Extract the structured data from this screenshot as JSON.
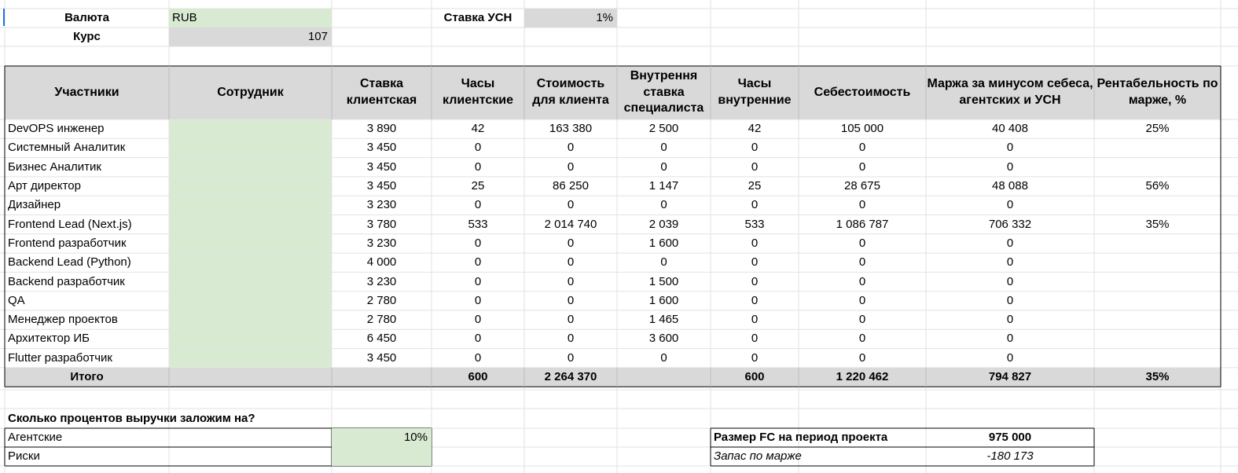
{
  "top": {
    "currency_label": "Валюта",
    "currency_value": "RUB",
    "rate_label": "Курс",
    "rate_value": "107",
    "usn_label": "Ставка УСН",
    "usn_value": "1%"
  },
  "table": {
    "headers": [
      "Участники",
      "Сотрудник",
      "Ставка клиентская",
      "Часы клиентские",
      "Стоимость для клиента",
      "Внутрення ставка специалиста",
      "Часы внутренние",
      "Себестоимость",
      "Маржа за минусом себеса, агентских и УСН",
      "Рентабельность по марже, %"
    ],
    "rows": [
      [
        "DevOPS инженер",
        "",
        "3 890",
        "42",
        "163 380",
        "2 500",
        "42",
        "105 000",
        "40 408",
        "25%"
      ],
      [
        "Системный Аналитик",
        "",
        "3 450",
        "0",
        "0",
        "0",
        "0",
        "0",
        "0",
        ""
      ],
      [
        "Бизнес Аналитик",
        "",
        "3 450",
        "0",
        "0",
        "0",
        "0",
        "0",
        "0",
        ""
      ],
      [
        "Арт директор",
        "",
        "3 450",
        "25",
        "86 250",
        "1 147",
        "25",
        "28 675",
        "48 088",
        "56%"
      ],
      [
        "Дизайнер",
        "",
        "3 230",
        "0",
        "0",
        "0",
        "0",
        "0",
        "0",
        ""
      ],
      [
        "Frontend Lead  (Next.js)",
        "",
        "3 780",
        "533",
        "2 014 740",
        "2 039",
        "533",
        "1 086 787",
        "706 332",
        "35%"
      ],
      [
        "Frontend разработчик",
        "",
        "3 230",
        "0",
        "0",
        "1 600",
        "0",
        "0",
        "0",
        ""
      ],
      [
        "Backend Lead (Python)",
        "",
        "4 000",
        "0",
        "0",
        "0",
        "0",
        "0",
        "0",
        ""
      ],
      [
        "Backend разработчик",
        "",
        "3 230",
        "0",
        "0",
        "1 500",
        "0",
        "0",
        "0",
        ""
      ],
      [
        "QA",
        "",
        "2 780",
        "0",
        "0",
        "1 600",
        "0",
        "0",
        "0",
        ""
      ],
      [
        "Менеджер проектов",
        "",
        "2 780",
        "0",
        "0",
        "1 465",
        "0",
        "0",
        "0",
        ""
      ],
      [
        "Архитектор ИБ",
        "",
        "6 450",
        "0",
        "0",
        "3 600",
        "0",
        "0",
        "0",
        ""
      ],
      [
        "Flutter разработчик",
        "",
        "3 450",
        "0",
        "0",
        "0",
        "0",
        "0",
        "0",
        ""
      ]
    ],
    "total": [
      "Итого",
      "",
      "",
      "600",
      "2 264 370",
      "",
      "600",
      "1 220 462",
      "794 827",
      "35%"
    ]
  },
  "bottom": {
    "question": "Сколько процентов выручки заложим на?",
    "agency_label": "Агентские",
    "agency_value": "10%",
    "risks_label": "Риски",
    "risks_value": "",
    "fc_label": "Размер FC на период проекта",
    "fc_value": "975 000",
    "reserve_label": "Запас по марже",
    "reserve_value": "-180 173"
  },
  "colors": {
    "input_green": "#d9ead3",
    "header_grey": "#d9d9d9",
    "gridline": "#e2e2e2",
    "border": "#000000",
    "selection": "#1a73e8"
  }
}
